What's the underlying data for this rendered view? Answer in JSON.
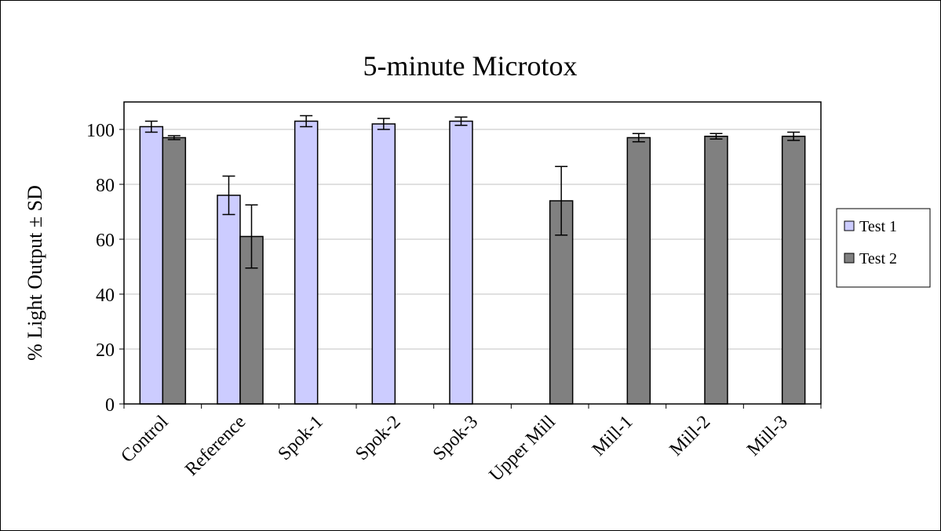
{
  "chart_data": {
    "type": "bar",
    "title": "5-minute Microtox",
    "xlabel": "",
    "ylabel": "% Light Output ± SD",
    "ylim": [
      0,
      110
    ],
    "yticks": [
      0,
      20,
      40,
      60,
      80,
      100
    ],
    "grid": true,
    "legend_position": "right",
    "categories": [
      "Control",
      "Reference",
      "Spok-1",
      "Spok-2",
      "Spok-3",
      "Upper Mill",
      "Mill-1",
      "Mill-2",
      "Mill-3"
    ],
    "series": [
      {
        "name": "Test 1",
        "color": "#ccccff",
        "values": [
          101,
          76,
          103,
          102,
          103,
          null,
          null,
          null,
          null
        ],
        "errors": [
          2,
          7,
          2,
          2,
          1.5,
          null,
          null,
          null,
          null
        ]
      },
      {
        "name": "Test 2",
        "color": "#808080",
        "values": [
          97,
          61,
          null,
          null,
          null,
          74,
          97,
          97.5,
          97.5
        ],
        "errors": [
          0.7,
          11.5,
          null,
          null,
          null,
          12.5,
          1.5,
          1,
          1.5
        ]
      }
    ]
  }
}
